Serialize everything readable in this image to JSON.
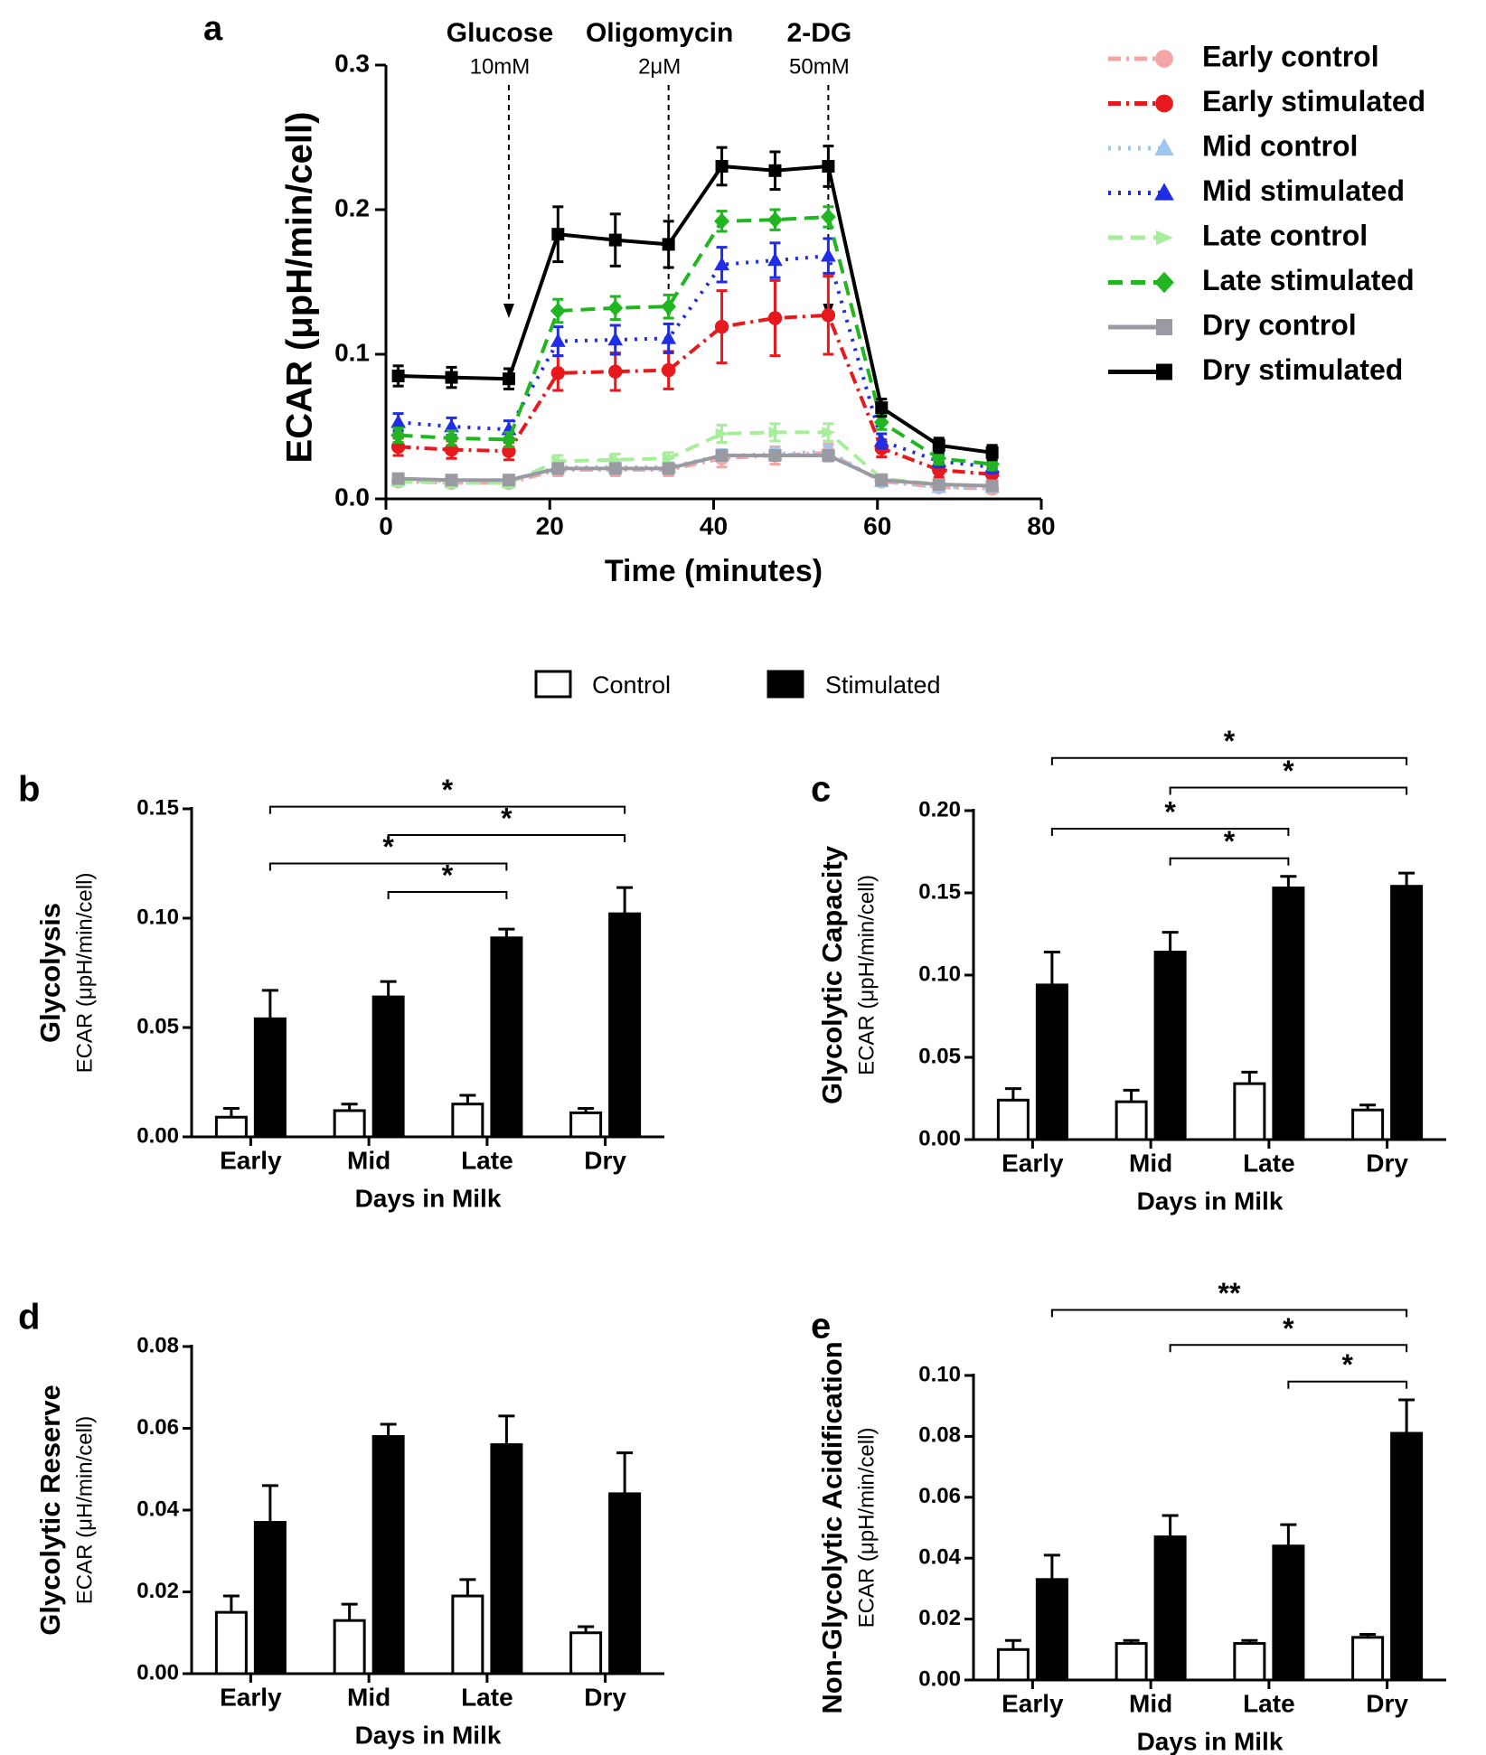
{
  "legend_bar": {
    "control": "Control",
    "stimulated": "Stimulated"
  },
  "chart_data": [
    {
      "panel": "a",
      "type": "line",
      "xlabel": "Time (minutes)",
      "ylabel": "ECAR (μpH/min/cell)",
      "xlim": [
        0,
        80
      ],
      "ylim": [
        0,
        0.3
      ],
      "xticks": [
        "0",
        "20",
        "40",
        "60",
        "80"
      ],
      "yticks": [
        "0.0",
        "0.1",
        "0.2",
        "0.3"
      ],
      "x": [
        1.5,
        8.0,
        15.0,
        21.0,
        28.0,
        34.5,
        41.0,
        47.5,
        54.0,
        60.5,
        67.5,
        74.0
      ],
      "injections": [
        {
          "name": "Glucose",
          "conc": "10mM",
          "x": 15.0
        },
        {
          "name": "Oligomycin",
          "conc": "2μM",
          "x": 34.5
        },
        {
          "name": "2-DG",
          "conc": "50mM",
          "x": 54.0
        }
      ],
      "series": [
        {
          "name": "Early control",
          "color": "#f4a6a6",
          "dash": "dashdot",
          "marker": "circle",
          "values": [
            0.012,
            0.011,
            0.011,
            0.02,
            0.02,
            0.02,
            0.028,
            0.03,
            0.032,
            0.012,
            0.008,
            0.007
          ],
          "errors": [
            0.003,
            0.003,
            0.003,
            0.004,
            0.004,
            0.004,
            0.006,
            0.006,
            0.006,
            0.003,
            0.003,
            0.003
          ]
        },
        {
          "name": "Early stimulated",
          "color": "#e8191c",
          "dash": "dashdot",
          "marker": "circle",
          "values": [
            0.036,
            0.034,
            0.033,
            0.087,
            0.088,
            0.089,
            0.119,
            0.125,
            0.127,
            0.035,
            0.02,
            0.017
          ],
          "errors": [
            0.006,
            0.006,
            0.006,
            0.012,
            0.013,
            0.013,
            0.025,
            0.026,
            0.027,
            0.006,
            0.005,
            0.005
          ]
        },
        {
          "name": "Mid control",
          "color": "#9ec7ef",
          "dash": "dot",
          "marker": "triangle",
          "values": [
            0.013,
            0.012,
            0.012,
            0.022,
            0.022,
            0.022,
            0.03,
            0.031,
            0.033,
            0.012,
            0.008,
            0.008
          ],
          "errors": [
            0.003,
            0.003,
            0.003,
            0.003,
            0.003,
            0.003,
            0.004,
            0.004,
            0.004,
            0.003,
            0.003,
            0.003
          ]
        },
        {
          "name": "Mid stimulated",
          "color": "#1f2ee6",
          "dash": "dot",
          "marker": "triangle",
          "values": [
            0.053,
            0.05,
            0.048,
            0.109,
            0.11,
            0.111,
            0.162,
            0.165,
            0.168,
            0.04,
            0.026,
            0.022
          ],
          "errors": [
            0.006,
            0.006,
            0.006,
            0.01,
            0.01,
            0.01,
            0.012,
            0.012,
            0.012,
            0.005,
            0.004,
            0.004
          ]
        },
        {
          "name": "Late control",
          "color": "#a6ee9a",
          "dash": "dash",
          "marker": "arrow",
          "values": [
            0.012,
            0.011,
            0.011,
            0.026,
            0.027,
            0.028,
            0.045,
            0.046,
            0.046,
            0.014,
            0.01,
            0.009
          ],
          "errors": [
            0.003,
            0.003,
            0.003,
            0.004,
            0.004,
            0.004,
            0.006,
            0.006,
            0.006,
            0.003,
            0.003,
            0.003
          ]
        },
        {
          "name": "Late stimulated",
          "color": "#21b621",
          "dash": "dash",
          "marker": "diamond",
          "values": [
            0.044,
            0.042,
            0.041,
            0.13,
            0.132,
            0.133,
            0.192,
            0.193,
            0.195,
            0.053,
            0.028,
            0.024
          ],
          "errors": [
            0.005,
            0.005,
            0.005,
            0.008,
            0.008,
            0.008,
            0.007,
            0.007,
            0.007,
            0.005,
            0.004,
            0.004
          ]
        },
        {
          "name": "Dry control",
          "color": "#9a9aa2",
          "dash": "solid",
          "marker": "square",
          "values": [
            0.014,
            0.013,
            0.013,
            0.021,
            0.021,
            0.021,
            0.03,
            0.03,
            0.03,
            0.013,
            0.01,
            0.009
          ],
          "errors": [
            0.002,
            0.002,
            0.002,
            0.002,
            0.002,
            0.002,
            0.002,
            0.002,
            0.002,
            0.002,
            0.002,
            0.002
          ]
        },
        {
          "name": "Dry stimulated",
          "color": "#000000",
          "dash": "solid",
          "marker": "square",
          "values": [
            0.085,
            0.084,
            0.083,
            0.183,
            0.179,
            0.176,
            0.23,
            0.227,
            0.23,
            0.063,
            0.037,
            0.032
          ],
          "errors": [
            0.007,
            0.007,
            0.007,
            0.019,
            0.018,
            0.016,
            0.013,
            0.013,
            0.014,
            0.006,
            0.005,
            0.005
          ]
        }
      ]
    },
    {
      "panel": "b",
      "type": "bar",
      "title": "Glycolysis",
      "ylabel": "ECAR (μpH/min/cell)",
      "xlabel": "Days in Milk",
      "categories": [
        "Early",
        "Mid",
        "Late",
        "Dry"
      ],
      "ylim": [
        0,
        0.15
      ],
      "yticks": [
        "0.00",
        "0.05",
        "0.10",
        "0.15"
      ],
      "series": [
        {
          "name": "Control",
          "values": [
            0.009,
            0.012,
            0.015,
            0.011
          ],
          "errors": [
            0.004,
            0.003,
            0.004,
            0.002
          ]
        },
        {
          "name": "Stimulated",
          "values": [
            0.054,
            0.064,
            0.091,
            0.102
          ],
          "errors": [
            0.013,
            0.007,
            0.004,
            0.012
          ]
        }
      ],
      "significance": [
        {
          "from": 0,
          "to": 3,
          "label": "*",
          "y": 0.151
        },
        {
          "from": 1,
          "to": 3,
          "label": "*",
          "y": 0.138
        },
        {
          "from": 0,
          "to": 2,
          "label": "*",
          "y": 0.125
        },
        {
          "from": 1,
          "to": 2,
          "label": "*",
          "y": 0.112
        }
      ]
    },
    {
      "panel": "c",
      "type": "bar",
      "title": "Glycolytic Capacity",
      "ylabel": "ECAR (μpH/min/cell)",
      "xlabel": "Days in Milk",
      "categories": [
        "Early",
        "Mid",
        "Late",
        "Dry"
      ],
      "ylim": [
        0,
        0.2
      ],
      "yticks": [
        "0.00",
        "0.05",
        "0.10",
        "0.15",
        "0.20"
      ],
      "series": [
        {
          "name": "Control",
          "values": [
            0.024,
            0.023,
            0.034,
            0.018
          ],
          "errors": [
            0.007,
            0.007,
            0.007,
            0.003
          ]
        },
        {
          "name": "Stimulated",
          "values": [
            0.094,
            0.114,
            0.153,
            0.154
          ],
          "errors": [
            0.02,
            0.012,
            0.007,
            0.008
          ]
        }
      ],
      "significance": [
        {
          "from": 0,
          "to": 3,
          "label": "*",
          "y": 0.232
        },
        {
          "from": 1,
          "to": 3,
          "label": "*",
          "y": 0.214
        },
        {
          "from": 0,
          "to": 2,
          "label": "*",
          "y": 0.189
        },
        {
          "from": 1,
          "to": 2,
          "label": "*",
          "y": 0.171
        }
      ]
    },
    {
      "panel": "d",
      "type": "bar",
      "title": "Glycolytic Reserve",
      "ylabel": "ECAR (μH/min/cell)",
      "xlabel": "Days in Milk",
      "categories": [
        "Early",
        "Mid",
        "Late",
        "Dry"
      ],
      "ylim": [
        0,
        0.08
      ],
      "yticks": [
        "0.00",
        "0.02",
        "0.04",
        "0.06",
        "0.08"
      ],
      "series": [
        {
          "name": "Control",
          "values": [
            0.015,
            0.013,
            0.019,
            0.01
          ],
          "errors": [
            0.004,
            0.004,
            0.004,
            0.0015
          ]
        },
        {
          "name": "Stimulated",
          "values": [
            0.037,
            0.058,
            0.056,
            0.044
          ],
          "errors": [
            0.009,
            0.003,
            0.007,
            0.01
          ]
        }
      ],
      "significance": []
    },
    {
      "panel": "e",
      "type": "bar",
      "title": "Non-Glycolytic Acidification",
      "ylabel": "ECAR (μpH/min/cell)",
      "xlabel": "Days in Milk",
      "categories": [
        "Early",
        "Mid",
        "Late",
        "Dry"
      ],
      "ylim": [
        0,
        0.1
      ],
      "yticks": [
        "0.00",
        "0.02",
        "0.04",
        "0.06",
        "0.08",
        "0.10"
      ],
      "series": [
        {
          "name": "Control",
          "values": [
            0.01,
            0.012,
            0.012,
            0.014
          ],
          "errors": [
            0.003,
            0.001,
            0.001,
            0.001
          ]
        },
        {
          "name": "Stimulated",
          "values": [
            0.033,
            0.047,
            0.044,
            0.081
          ],
          "errors": [
            0.008,
            0.007,
            0.007,
            0.011
          ]
        }
      ],
      "significance": [
        {
          "from": 0,
          "to": 3,
          "label": "**",
          "y": 0.1215
        },
        {
          "from": 1,
          "to": 3,
          "label": "*",
          "y": 0.11
        },
        {
          "from": 2,
          "to": 3,
          "label": "*",
          "y": 0.098
        }
      ]
    }
  ]
}
